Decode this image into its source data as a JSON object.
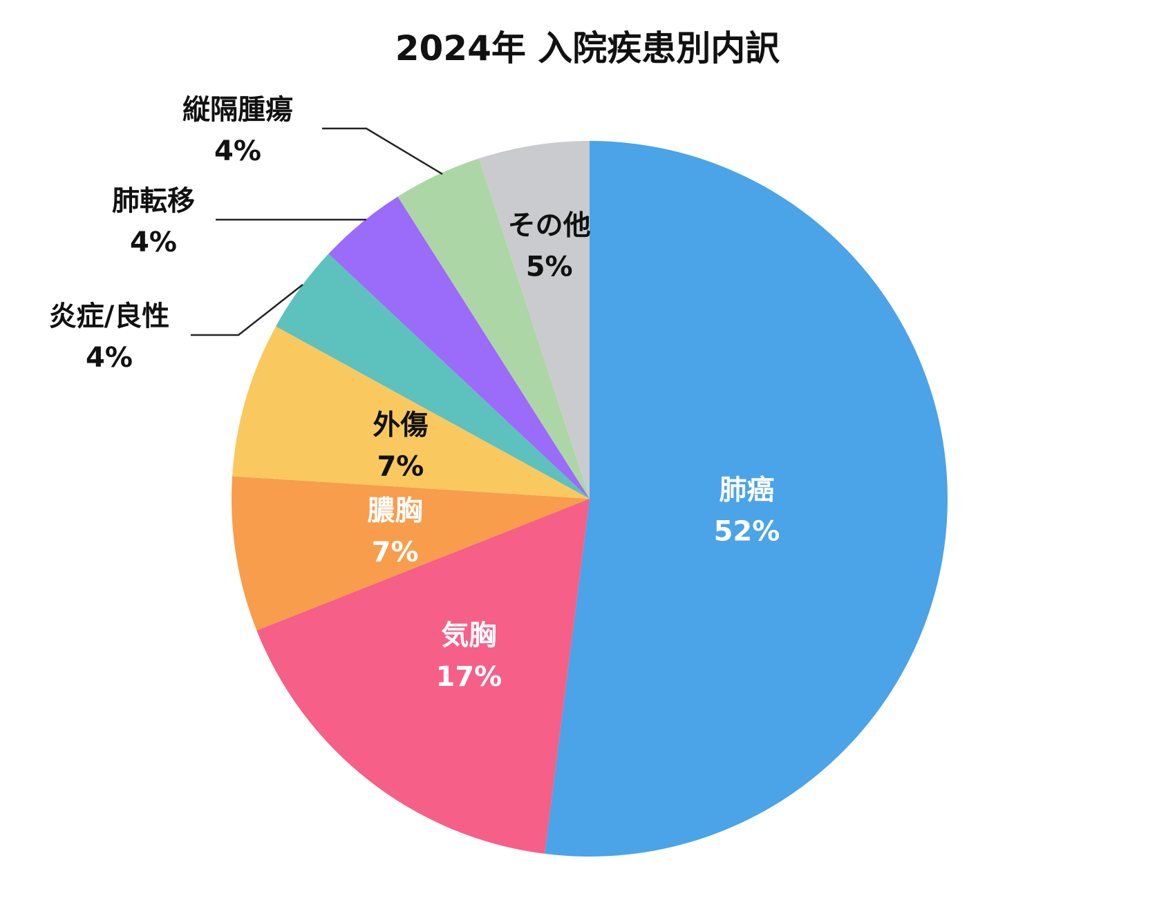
{
  "chart_data": {
    "type": "pie",
    "title": "2024年 入院疾患別内訳",
    "start_angle_deg": 0,
    "direction": "clockwise",
    "slices": [
      {
        "label": "肺癌",
        "value": 52,
        "value_label": "52%",
        "color": "#4BA3E8",
        "label_color": "#ffffff",
        "label_placement": "inside"
      },
      {
        "label": "気胸",
        "value": 17,
        "value_label": "17%",
        "color": "#F65F87",
        "label_color": "#ffffff",
        "label_placement": "inside"
      },
      {
        "label": "膿胸",
        "value": 7,
        "value_label": "7%",
        "color": "#F79D4B",
        "label_color": "#ffffff",
        "label_placement": "inside"
      },
      {
        "label": "外傷",
        "value": 7,
        "value_label": "7%",
        "color": "#F9C95F",
        "label_color": "#111111",
        "label_placement": "inside"
      },
      {
        "label": "炎症/良性",
        "value": 4,
        "value_label": "4%",
        "color": "#5DC1BD",
        "label_color": "#111111",
        "label_placement": "outside"
      },
      {
        "label": "肺転移",
        "value": 4,
        "value_label": "4%",
        "color": "#9B6BF9",
        "label_color": "#111111",
        "label_placement": "outside"
      },
      {
        "label": "縦隔腫瘍",
        "value": 4,
        "value_label": "4%",
        "color": "#ADD6A6",
        "label_color": "#111111",
        "label_placement": "outside"
      },
      {
        "label": "その他",
        "value": 5,
        "value_label": "5%",
        "color": "#CACBCF",
        "label_color": "#111111",
        "label_placement": "inside"
      }
    ]
  }
}
